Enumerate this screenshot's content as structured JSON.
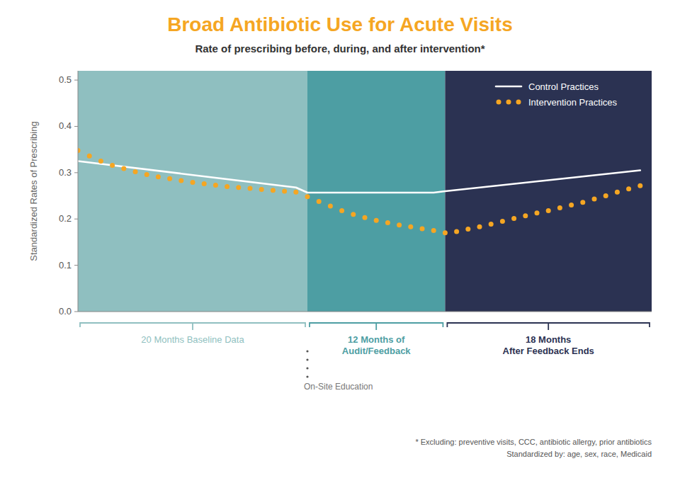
{
  "chart_data": {
    "type": "line",
    "title": "Broad Antibiotic Use for Acute Visits",
    "subtitle": "Rate of prescribing before, during, and after intervention*",
    "y_label": "Standardized Rates of Prescribing",
    "xlim": [
      0,
      50
    ],
    "ylim": [
      0.0,
      0.52
    ],
    "yticks": [
      {
        "value": 0.0,
        "label": "0.0"
      },
      0.1,
      0.2,
      0.3,
      0.4,
      0.5
    ],
    "tick_labels": "y",
    "grid": false,
    "legend": "upper right",
    "series": [
      {
        "name": "Control Practices",
        "type": "line",
        "color": "#ffffff",
        "line_style": "solid",
        "x": [
          0,
          19,
          20,
          31,
          32,
          49
        ],
        "values": [
          0.325,
          0.268,
          0.257,
          0.257,
          0.26,
          0.305
        ]
      },
      {
        "name": "Intervention Practices",
        "type": "scatter",
        "color": "#F5A623",
        "marker": "circle",
        "x": [
          0,
          1,
          2,
          3,
          4,
          5,
          6,
          7,
          8,
          9,
          10,
          11,
          12,
          13,
          14,
          15,
          16,
          17,
          18,
          19,
          20,
          21,
          22,
          23,
          24,
          25,
          26,
          27,
          28,
          29,
          30,
          31,
          32,
          33,
          34,
          35,
          36,
          37,
          38,
          39,
          40,
          41,
          42,
          43,
          44,
          45,
          46,
          47,
          48,
          49
        ],
        "values": [
          0.348,
          0.336,
          0.325,
          0.316,
          0.309,
          0.302,
          0.296,
          0.291,
          0.287,
          0.283,
          0.279,
          0.276,
          0.273,
          0.27,
          0.268,
          0.266,
          0.264,
          0.262,
          0.26,
          0.258,
          0.248,
          0.238,
          0.228,
          0.218,
          0.21,
          0.203,
          0.197,
          0.192,
          0.187,
          0.183,
          0.179,
          0.175,
          0.17,
          0.173,
          0.178,
          0.183,
          0.189,
          0.195,
          0.201,
          0.207,
          0.213,
          0.218,
          0.224,
          0.23,
          0.236,
          0.243,
          0.25,
          0.258,
          0.265,
          0.272
        ]
      }
    ],
    "zones": [
      {
        "start": 0,
        "end": 20,
        "label": "20 Months Baseline Data",
        "color": "#8FBFC0"
      },
      {
        "start": 20,
        "end": 32,
        "label": "12 Months of\nAudit/Feedback",
        "color": "#4D9EA3"
      },
      {
        "start": 32,
        "end": 50,
        "label": "18 Months\nAfter Feedback Ends",
        "color": "#2B3252"
      }
    ],
    "annotations": [
      {
        "x": 20,
        "text": "On-Site Education"
      }
    ],
    "footnotes": [
      "* Excluding: preventive visits, CCC, antibiotic allergy, prior antibiotics",
      "Standardized by: age, sex, race, Medicaid"
    ]
  }
}
